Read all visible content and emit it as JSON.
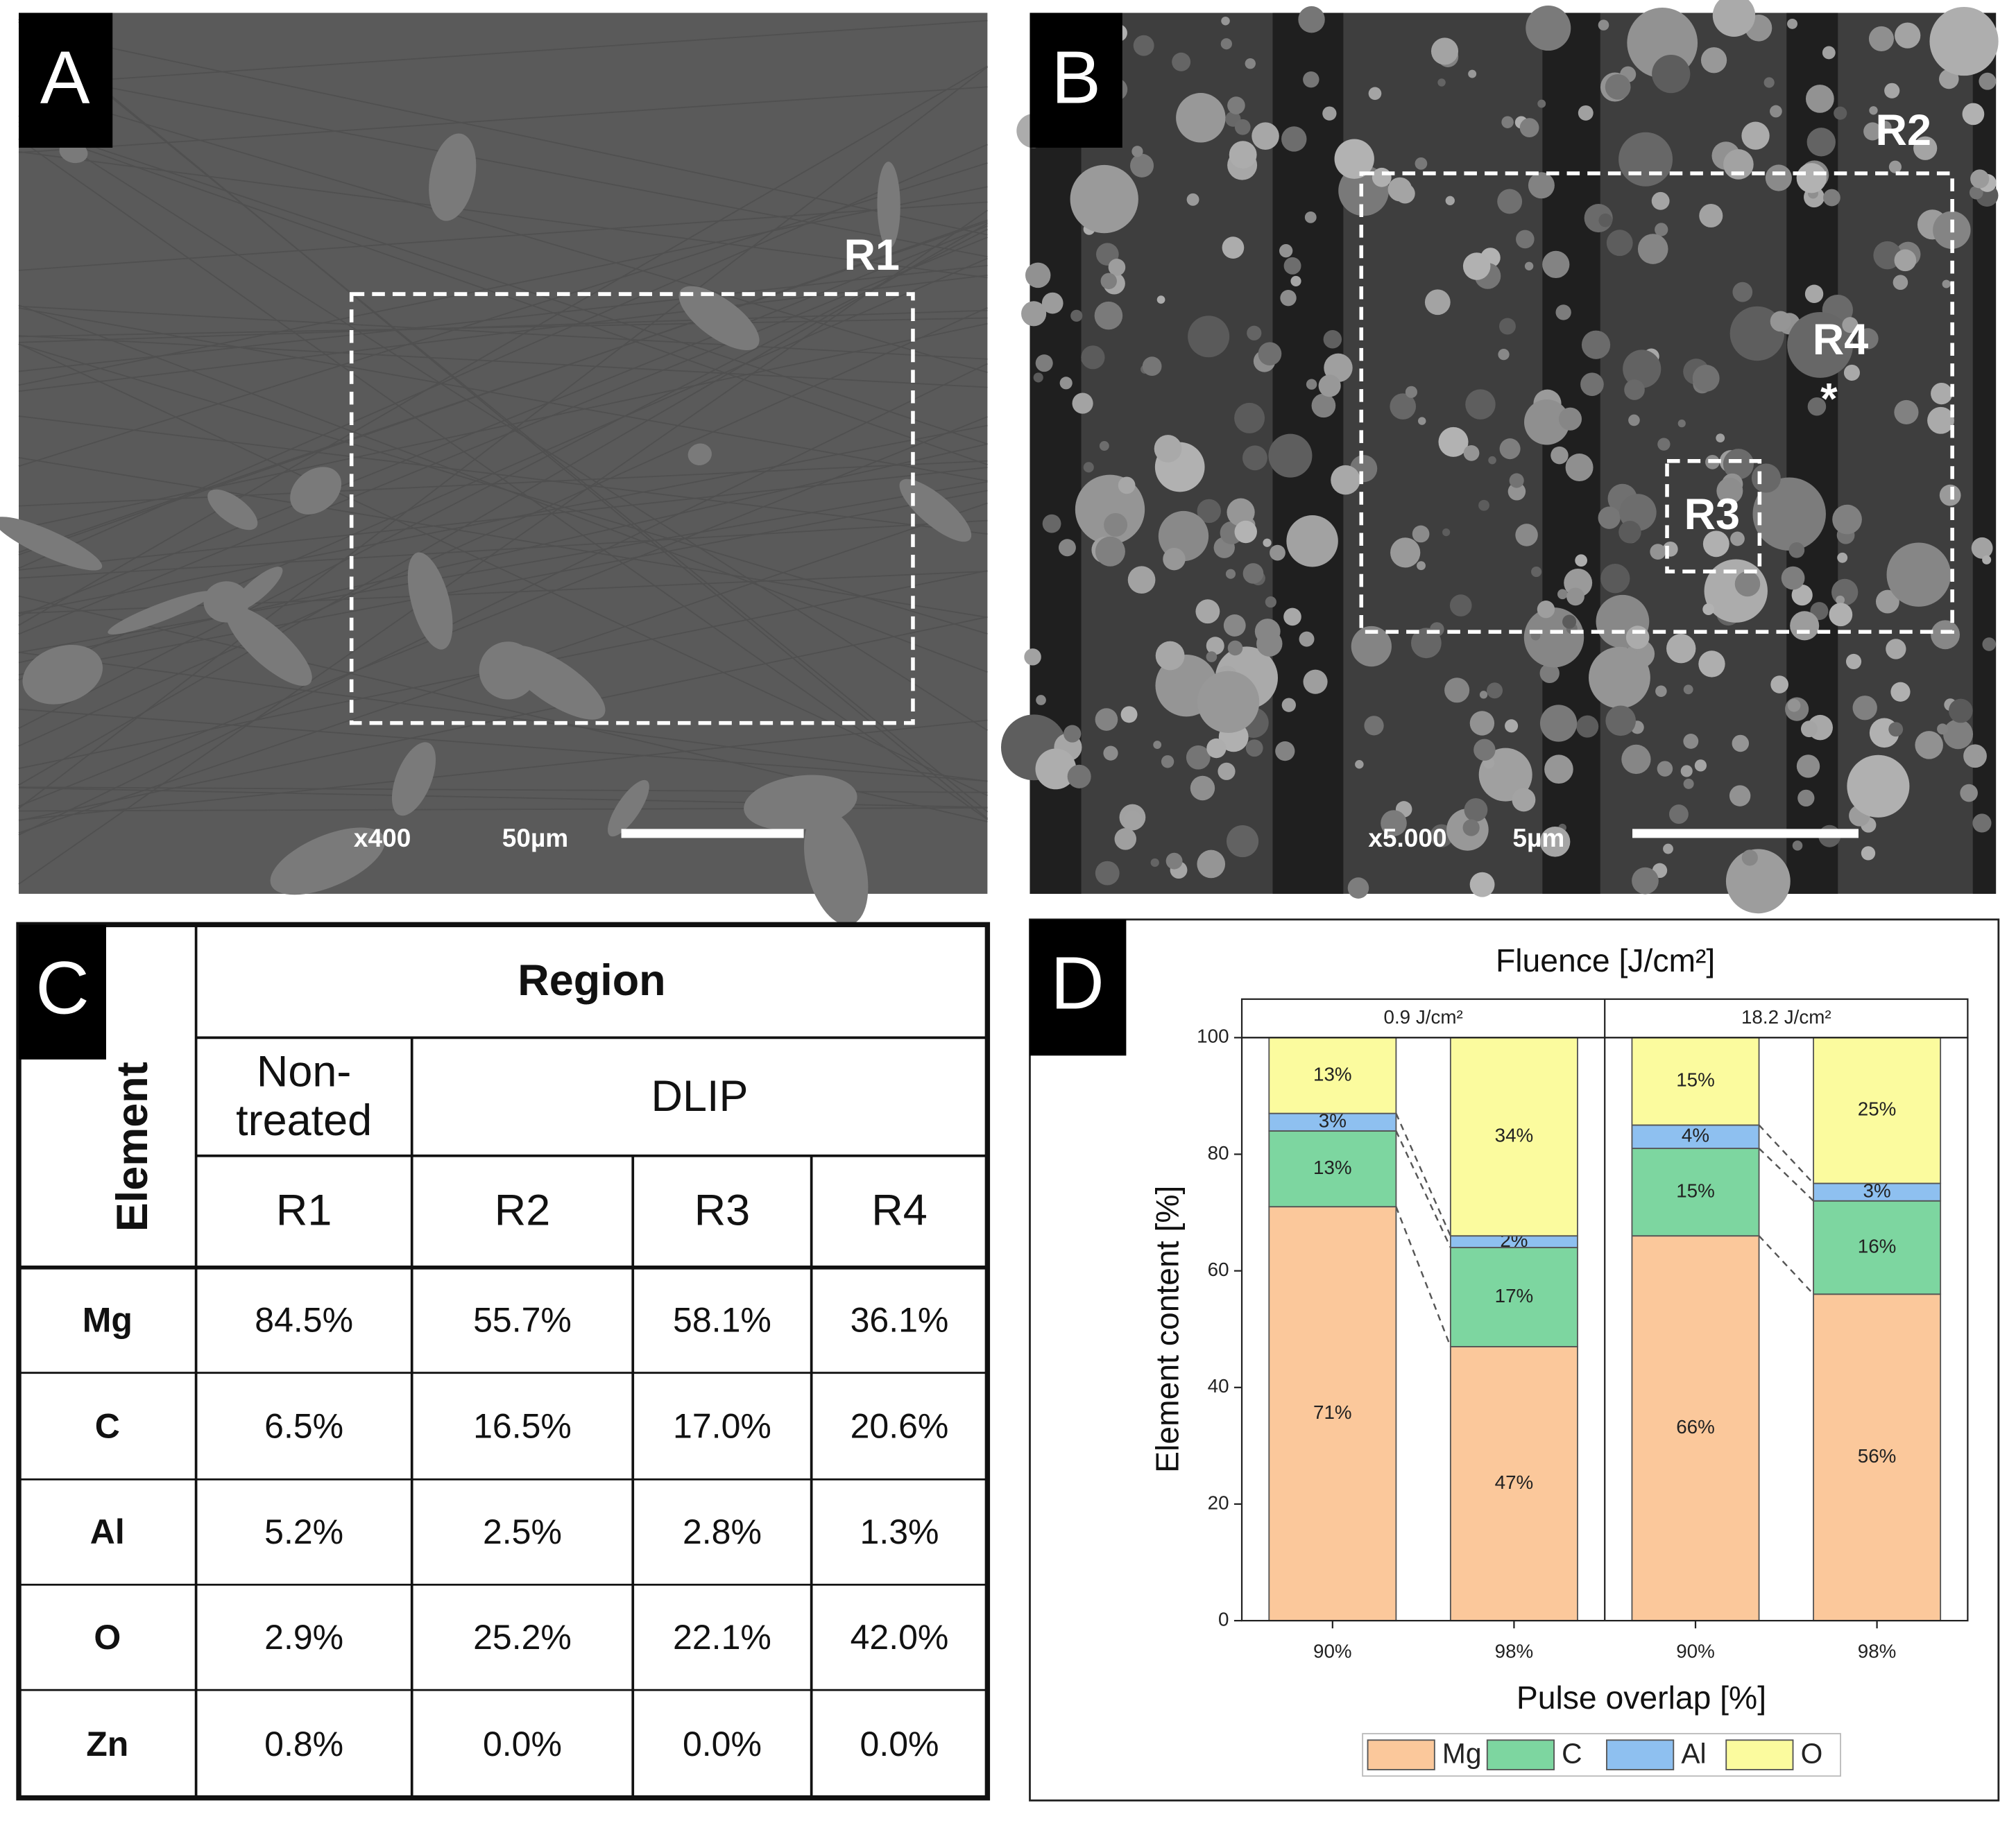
{
  "panels": {
    "A": {
      "label": "A",
      "region": "R1",
      "magnification": "x400",
      "scale": "50µm"
    },
    "B": {
      "label": "B",
      "regions": [
        "R2",
        "R4",
        "R3"
      ],
      "marker": "*",
      "magnification": "x5.000",
      "scale": "5µm"
    }
  },
  "table": {
    "label": "C",
    "row_header": "Element",
    "group_header": "Region",
    "subgroups": [
      "Non-treated",
      "DLIP"
    ],
    "columns": [
      "R1",
      "R2",
      "R3",
      "R4"
    ],
    "rows": [
      [
        "Mg",
        "84.5%",
        "55.7%",
        "58.1%",
        "36.1%"
      ],
      [
        "C",
        "6.5%",
        "16.5%",
        "17.0%",
        "20.6%"
      ],
      [
        "Al",
        "5.2%",
        "2.5%",
        "2.8%",
        "1.3%"
      ],
      [
        "O",
        "2.9%",
        "25.2%",
        "22.1%",
        "42.0%"
      ],
      [
        "Zn",
        "0.8%",
        "0.0%",
        "0.0%",
        "0.0%"
      ]
    ]
  },
  "chart_data": {
    "label": "D",
    "type": "bar",
    "stacked": true,
    "title": "Fluence [J/cm²]",
    "facets": [
      {
        "label": "0.9 J/cm²",
        "categories": [
          "90%",
          "98%"
        ]
      },
      {
        "label": "18.2 J/cm²",
        "categories": [
          "90%",
          "98%"
        ]
      }
    ],
    "series": [
      {
        "name": "Mg",
        "color": "#fbc89b",
        "values": [
          71,
          47,
          66,
          56
        ],
        "value_labels": [
          "71%",
          "47%",
          "66%",
          "56%"
        ]
      },
      {
        "name": "C",
        "color": "#7dd6a0",
        "values": [
          13,
          17,
          15,
          16
        ],
        "value_labels": [
          "13%",
          "17%",
          "15%",
          "16%"
        ]
      },
      {
        "name": "Al",
        "color": "#8ec0f0",
        "values": [
          3,
          2,
          4,
          3
        ],
        "value_labels": [
          "3%",
          "2%",
          "4%",
          "3%"
        ]
      },
      {
        "name": "O",
        "color": "#fbfb9e",
        "values": [
          13,
          34,
          15,
          25
        ],
        "value_labels": [
          "13%",
          "34%",
          "15%",
          "25%"
        ]
      }
    ],
    "ylim": [
      0,
      100
    ],
    "yticks": [
      0,
      20,
      40,
      60,
      80,
      100
    ],
    "xlabel": "Pulse overlap [%]",
    "ylabel": "Element content [%]",
    "legend": "bottom"
  }
}
